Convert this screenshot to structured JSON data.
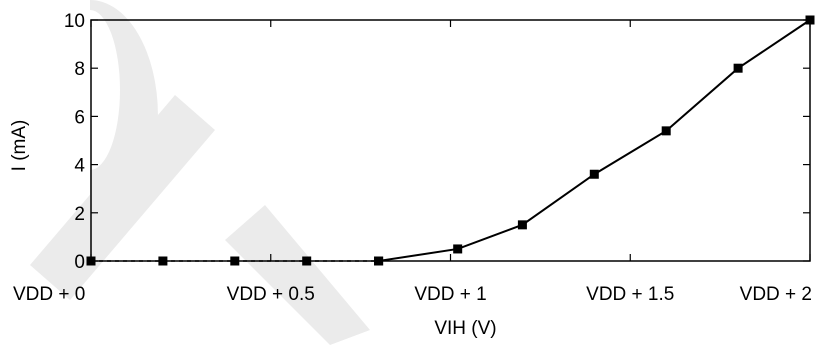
{
  "chart_data": {
    "type": "line",
    "xlabel": "VIH (V)",
    "ylabel": "I (mA)",
    "xlim": [
      0,
      2
    ],
    "ylim": [
      0,
      10
    ],
    "x_ticks": [
      {
        "value": 0,
        "label": "VDD + 0"
      },
      {
        "value": 0.5,
        "label": "VDD + 0.5"
      },
      {
        "value": 1,
        "label": "VDD + 1"
      },
      {
        "value": 1.5,
        "label": "VDD + 1.5"
      },
      {
        "value": 2,
        "label": "VDD + 2"
      }
    ],
    "y_ticks": [
      {
        "value": 0,
        "label": "0"
      },
      {
        "value": 2,
        "label": "2"
      },
      {
        "value": 4,
        "label": "4"
      },
      {
        "value": 6,
        "label": "6"
      },
      {
        "value": 8,
        "label": "8"
      },
      {
        "value": 10,
        "label": "10"
      }
    ],
    "grid": false,
    "series": [
      {
        "style": "dashed",
        "x": [
          0,
          0.2,
          0.4,
          0.6,
          0.8
        ],
        "y": [
          0,
          0,
          0,
          0,
          0
        ]
      },
      {
        "style": "solid",
        "x": [
          0.8,
          1.02,
          1.2,
          1.4,
          1.6,
          1.8,
          2.0
        ],
        "y": [
          0,
          0.5,
          1.5,
          3.6,
          5.4,
          8.0,
          10.0
        ]
      }
    ],
    "colors": {
      "line": "#000000",
      "marker": "#000000",
      "watermark": "#ebebeb"
    }
  }
}
